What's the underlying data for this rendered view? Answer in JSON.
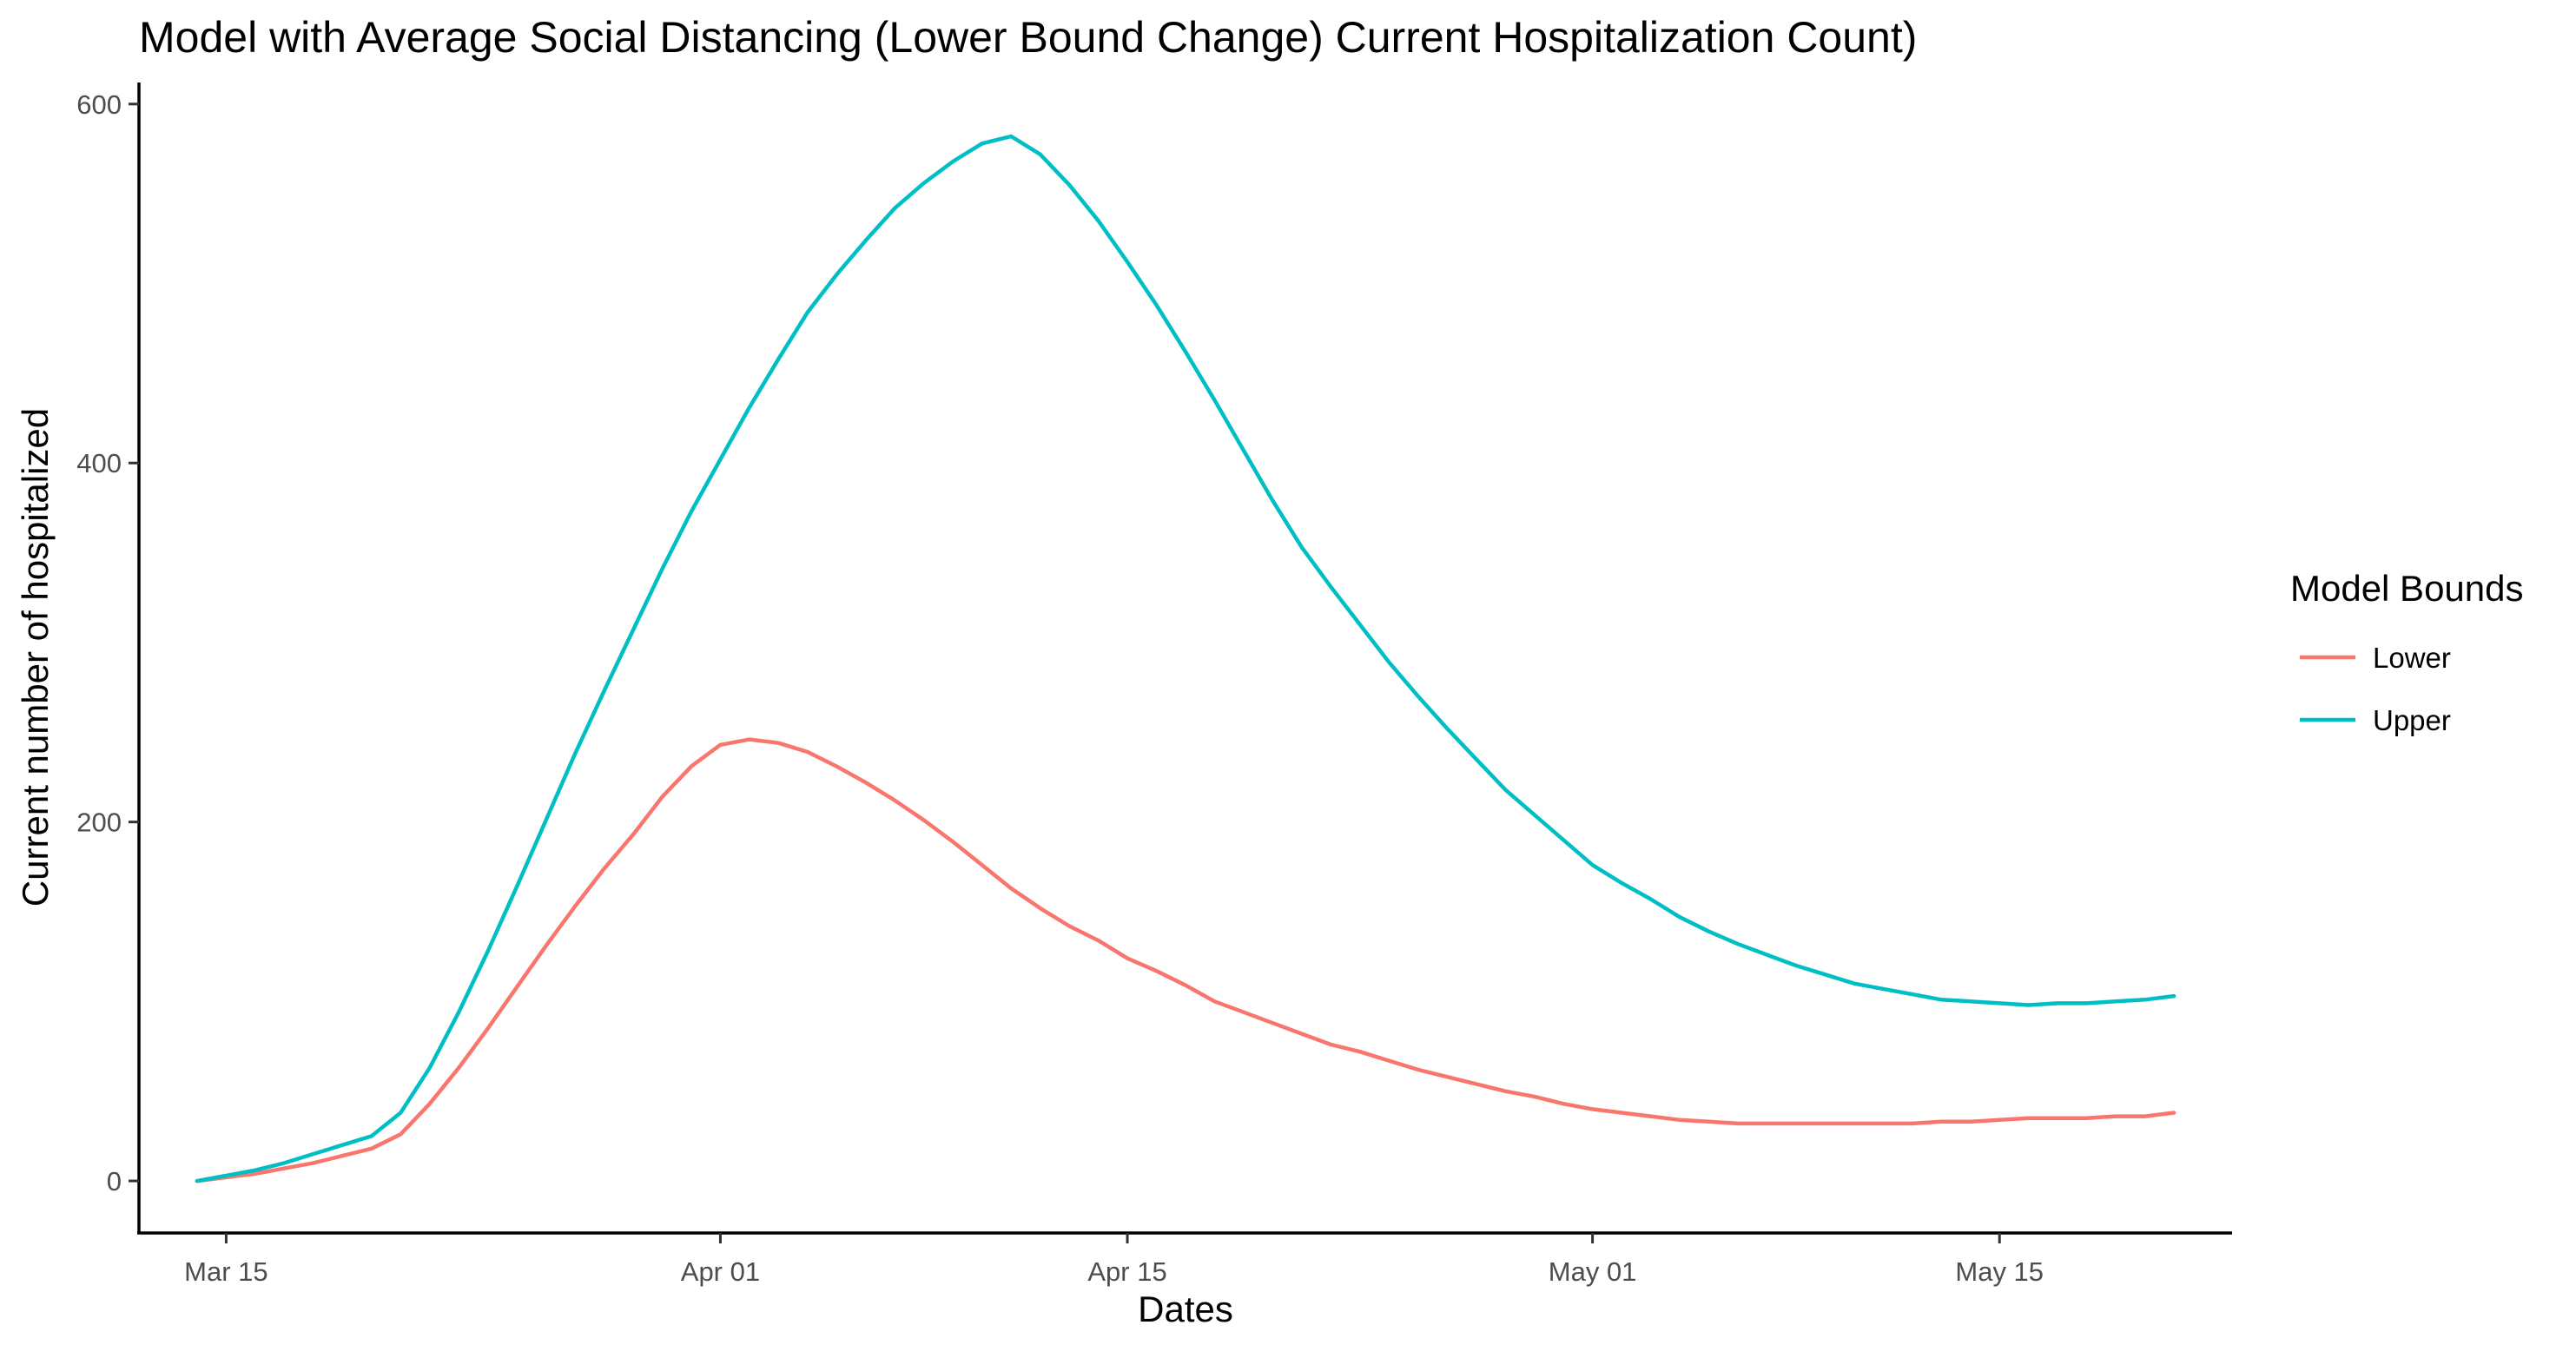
{
  "chart_data": {
    "type": "line",
    "title": "Model with Average Social Distancing (Lower Bound Change) Current Hospitalization Count)",
    "xlabel": "Dates",
    "ylabel": "Current number of hospitalized",
    "legend_title": "Model Bounds",
    "legend_position": "right",
    "grid": false,
    "x_ticks": [
      {
        "date": "2020-03-15",
        "label": "Mar 15"
      },
      {
        "date": "2020-04-01",
        "label": "Apr 01"
      },
      {
        "date": "2020-04-15",
        "label": "Apr 15"
      },
      {
        "date": "2020-05-01",
        "label": "May 01"
      },
      {
        "date": "2020-05-15",
        "label": "May 15"
      }
    ],
    "y_ticks": [
      0,
      200,
      400,
      600
    ],
    "xlim": [
      "2020-03-12",
      "2020-05-23"
    ],
    "ylim": [
      -29,
      612
    ],
    "series": [
      {
        "name": "Lower",
        "color": "#F8766D",
        "points": [
          [
            "2020-03-14",
            0
          ],
          [
            "2020-03-15",
            2
          ],
          [
            "2020-03-16",
            4
          ],
          [
            "2020-03-17",
            7
          ],
          [
            "2020-03-18",
            10
          ],
          [
            "2020-03-19",
            14
          ],
          [
            "2020-03-20",
            18
          ],
          [
            "2020-03-21",
            26
          ],
          [
            "2020-03-22",
            43
          ],
          [
            "2020-03-23",
            63
          ],
          [
            "2020-03-24",
            85
          ],
          [
            "2020-03-25",
            108
          ],
          [
            "2020-03-26",
            131
          ],
          [
            "2020-03-27",
            153
          ],
          [
            "2020-03-28",
            174
          ],
          [
            "2020-03-29",
            193
          ],
          [
            "2020-03-30",
            214
          ],
          [
            "2020-03-31",
            231
          ],
          [
            "2020-04-01",
            243
          ],
          [
            "2020-04-02",
            246
          ],
          [
            "2020-04-03",
            244
          ],
          [
            "2020-04-04",
            239
          ],
          [
            "2020-04-05",
            231
          ],
          [
            "2020-04-06",
            222
          ],
          [
            "2020-04-07",
            212
          ],
          [
            "2020-04-08",
            201
          ],
          [
            "2020-04-09",
            189
          ],
          [
            "2020-04-10",
            176
          ],
          [
            "2020-04-11",
            163
          ],
          [
            "2020-04-12",
            152
          ],
          [
            "2020-04-13",
            142
          ],
          [
            "2020-04-14",
            134
          ],
          [
            "2020-04-15",
            124
          ],
          [
            "2020-04-16",
            117
          ],
          [
            "2020-04-17",
            109
          ],
          [
            "2020-04-18",
            100
          ],
          [
            "2020-04-19",
            94
          ],
          [
            "2020-04-20",
            88
          ],
          [
            "2020-04-21",
            82
          ],
          [
            "2020-04-22",
            76
          ],
          [
            "2020-04-23",
            72
          ],
          [
            "2020-04-24",
            67
          ],
          [
            "2020-04-25",
            62
          ],
          [
            "2020-04-26",
            58
          ],
          [
            "2020-04-27",
            54
          ],
          [
            "2020-04-28",
            50
          ],
          [
            "2020-04-29",
            47
          ],
          [
            "2020-04-30",
            43
          ],
          [
            "2020-05-01",
            40
          ],
          [
            "2020-05-02",
            38
          ],
          [
            "2020-05-03",
            36
          ],
          [
            "2020-05-04",
            34
          ],
          [
            "2020-05-05",
            33
          ],
          [
            "2020-05-06",
            32
          ],
          [
            "2020-05-07",
            32
          ],
          [
            "2020-05-08",
            32
          ],
          [
            "2020-05-09",
            32
          ],
          [
            "2020-05-10",
            32
          ],
          [
            "2020-05-11",
            32
          ],
          [
            "2020-05-12",
            32
          ],
          [
            "2020-05-13",
            33
          ],
          [
            "2020-05-14",
            33
          ],
          [
            "2020-05-15",
            34
          ],
          [
            "2020-05-16",
            35
          ],
          [
            "2020-05-17",
            35
          ],
          [
            "2020-05-18",
            35
          ],
          [
            "2020-05-19",
            36
          ],
          [
            "2020-05-20",
            36
          ],
          [
            "2020-05-21",
            38
          ]
        ]
      },
      {
        "name": "Upper",
        "color": "#00BFC4",
        "points": [
          [
            "2020-03-14",
            0
          ],
          [
            "2020-03-15",
            3
          ],
          [
            "2020-03-16",
            6
          ],
          [
            "2020-03-17",
            10
          ],
          [
            "2020-03-18",
            15
          ],
          [
            "2020-03-19",
            20
          ],
          [
            "2020-03-20",
            25
          ],
          [
            "2020-03-21",
            38
          ],
          [
            "2020-03-22",
            63
          ],
          [
            "2020-03-23",
            94
          ],
          [
            "2020-03-24",
            128
          ],
          [
            "2020-03-25",
            164
          ],
          [
            "2020-03-26",
            201
          ],
          [
            "2020-03-27",
            238
          ],
          [
            "2020-03-28",
            273
          ],
          [
            "2020-03-29",
            307
          ],
          [
            "2020-03-30",
            341
          ],
          [
            "2020-03-31",
            373
          ],
          [
            "2020-04-01",
            402
          ],
          [
            "2020-04-02",
            431
          ],
          [
            "2020-04-03",
            458
          ],
          [
            "2020-04-04",
            484
          ],
          [
            "2020-04-05",
            505
          ],
          [
            "2020-04-06",
            524
          ],
          [
            "2020-04-07",
            542
          ],
          [
            "2020-04-08",
            556
          ],
          [
            "2020-04-09",
            568
          ],
          [
            "2020-04-10",
            578
          ],
          [
            "2020-04-11",
            582
          ],
          [
            "2020-04-12",
            572
          ],
          [
            "2020-04-13",
            555
          ],
          [
            "2020-04-14",
            535
          ],
          [
            "2020-04-15",
            512
          ],
          [
            "2020-04-16",
            488
          ],
          [
            "2020-04-17",
            462
          ],
          [
            "2020-04-18",
            435
          ],
          [
            "2020-04-19",
            407
          ],
          [
            "2020-04-20",
            379
          ],
          [
            "2020-04-21",
            353
          ],
          [
            "2020-04-22",
            331
          ],
          [
            "2020-04-23",
            310
          ],
          [
            "2020-04-24",
            289
          ],
          [
            "2020-04-25",
            270
          ],
          [
            "2020-04-26",
            252
          ],
          [
            "2020-04-27",
            235
          ],
          [
            "2020-04-28",
            218
          ],
          [
            "2020-04-29",
            204
          ],
          [
            "2020-04-30",
            190
          ],
          [
            "2020-05-01",
            176
          ],
          [
            "2020-05-02",
            166
          ],
          [
            "2020-05-03",
            157
          ],
          [
            "2020-05-04",
            147
          ],
          [
            "2020-05-05",
            139
          ],
          [
            "2020-05-06",
            132
          ],
          [
            "2020-05-07",
            126
          ],
          [
            "2020-05-08",
            120
          ],
          [
            "2020-05-09",
            115
          ],
          [
            "2020-05-10",
            110
          ],
          [
            "2020-05-11",
            107
          ],
          [
            "2020-05-12",
            104
          ],
          [
            "2020-05-13",
            101
          ],
          [
            "2020-05-14",
            100
          ],
          [
            "2020-05-15",
            99
          ],
          [
            "2020-05-16",
            98
          ],
          [
            "2020-05-17",
            99
          ],
          [
            "2020-05-18",
            99
          ],
          [
            "2020-05-19",
            100
          ],
          [
            "2020-05-20",
            101
          ],
          [
            "2020-05-21",
            103
          ]
        ]
      }
    ]
  }
}
